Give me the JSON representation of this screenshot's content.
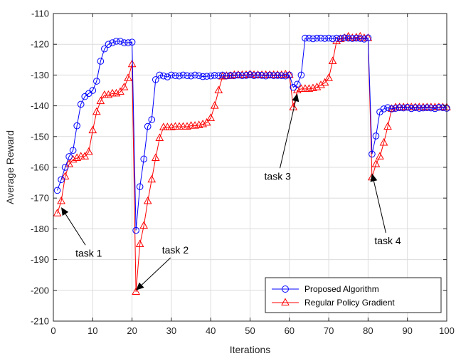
{
  "chart_data": {
    "type": "line",
    "title": "",
    "xlabel": "Iterations",
    "ylabel": "Average Reward",
    "xlim": [
      0,
      100
    ],
    "ylim": [
      -210,
      -110
    ],
    "xticks": [
      "0",
      "10",
      "20",
      "30",
      "40",
      "50",
      "60",
      "70",
      "80",
      "90",
      "100"
    ],
    "yticks": [
      "-110",
      "-120",
      "-130",
      "-140",
      "-150",
      "-160",
      "-170",
      "-180",
      "-190",
      "-200",
      "-210"
    ],
    "grid": true,
    "legend_position": "bottom-right",
    "x": [
      1,
      2,
      3,
      4,
      5,
      6,
      7,
      8,
      9,
      10,
      11,
      12,
      13,
      14,
      15,
      16,
      17,
      18,
      19,
      20,
      21,
      22,
      23,
      24,
      25,
      26,
      27,
      28,
      29,
      30,
      31,
      32,
      33,
      34,
      35,
      36,
      37,
      38,
      39,
      40,
      41,
      42,
      43,
      44,
      45,
      46,
      47,
      48,
      49,
      50,
      51,
      52,
      53,
      54,
      55,
      56,
      57,
      58,
      59,
      60,
      61,
      62,
      63,
      64,
      65,
      66,
      67,
      68,
      69,
      70,
      71,
      72,
      73,
      74,
      75,
      76,
      77,
      78,
      79,
      80,
      81,
      82,
      83,
      84,
      85,
      86,
      87,
      88,
      89,
      90,
      91,
      92,
      93,
      94,
      95,
      96,
      97,
      98,
      99,
      100
    ],
    "series": [
      {
        "name": "Proposed Algorithm",
        "color": "#0000ff",
        "marker": "circle",
        "values": [
          -167.5,
          -164,
          -160,
          -156.5,
          -154.5,
          -146.5,
          -139.5,
          -137,
          -136,
          -135,
          -132,
          -125.5,
          -121.5,
          -120,
          -119.5,
          -119,
          -119,
          -119.5,
          -119.5,
          -119.3,
          -180.5,
          -166.3,
          -157.3,
          -146.7,
          -144.5,
          -131.5,
          -130,
          -130.3,
          -130.6,
          -130,
          -130.2,
          -130.3,
          -130,
          -130.2,
          -130.3,
          -130,
          -130.2,
          -130.5,
          -130.4,
          -130.3,
          -130.1,
          -130.2,
          -130,
          -130.3,
          -130.1,
          -130.2,
          -130,
          -130.2,
          -130.1,
          -129.9,
          -130.2,
          -130,
          -130.1,
          -130.3,
          -130,
          -130.2,
          -130.1,
          -130.2,
          -130.3,
          -130,
          -134,
          -133,
          -130,
          -118,
          -118,
          -118.2,
          -118,
          -118,
          -118.1,
          -118,
          -118.2,
          -118,
          -118.1,
          -117.9,
          -118,
          -118.1,
          -118,
          -118.1,
          -118.3,
          -117.9,
          -155.7,
          -149.8,
          -142,
          -141,
          -140.6,
          -141,
          -140.8,
          -140.6,
          -140.7,
          -140.5,
          -140.9,
          -140.6,
          -140.8,
          -140.7,
          -140.6,
          -140.7,
          -140.9,
          -140.5,
          -140.6,
          -140.8
        ]
      },
      {
        "name": "Regular Policy Gradient",
        "color": "#ff0000",
        "marker": "triangle",
        "values": [
          -175,
          -171,
          -163,
          -159,
          -157.5,
          -157,
          -156.5,
          -156.5,
          -155,
          -148,
          -142,
          -138.5,
          -136.5,
          -136.5,
          -136,
          -136,
          -135.5,
          -134,
          -131,
          -126.5,
          -200.5,
          -185,
          -179,
          -171,
          -164,
          -157,
          -150.5,
          -147,
          -147,
          -147,
          -146.8,
          -146.8,
          -146.8,
          -146.8,
          -146.5,
          -146.5,
          -146.3,
          -146,
          -145.5,
          -144,
          -140,
          -135,
          -130.5,
          -130.3,
          -130.3,
          -130,
          -130,
          -130,
          -130,
          -129.8,
          -130,
          -130,
          -130,
          -130,
          -130,
          -130,
          -130,
          -130,
          -129.8,
          -130,
          -140.5,
          -135,
          -134.5,
          -134.5,
          -134.5,
          -134.3,
          -134,
          -133.3,
          -132.5,
          -131,
          -125.5,
          -119,
          -118.3,
          -118,
          -117.5,
          -118,
          -117.8,
          -117.5,
          -118,
          -118,
          -163.3,
          -159,
          -156.5,
          -152,
          -146.8,
          -141,
          -140.5,
          -140.5,
          -140.5,
          -140.5,
          -140.5,
          -140.5,
          -140.5,
          -140.5,
          -140.5,
          -140.5,
          -140.5,
          -140.5,
          -140.5,
          -140.5
        ]
      }
    ],
    "annotations": [
      {
        "text": "task 1",
        "target": [
          2,
          -173
        ],
        "text_at": [
          9,
          -189
        ]
      },
      {
        "text": "task 2",
        "target": [
          21,
          -200
        ],
        "text_at": [
          31,
          -188
        ]
      },
      {
        "text": "task 3",
        "target": [
          62,
          -136
        ],
        "text_at": [
          57,
          -164
        ]
      },
      {
        "text": "task 4",
        "target": [
          81,
          -162
        ],
        "text_at": [
          85,
          -185
        ]
      }
    ]
  }
}
